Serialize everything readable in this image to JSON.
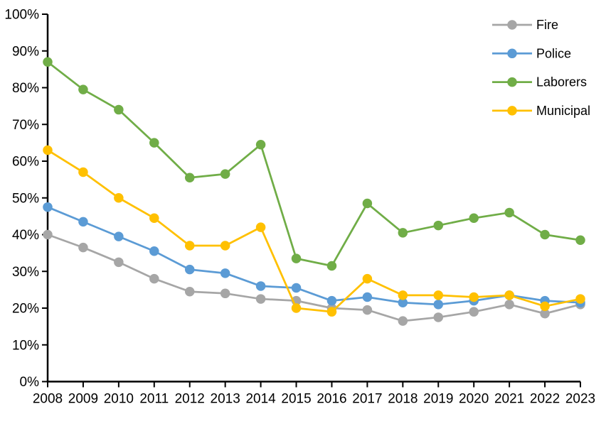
{
  "chart_data": {
    "type": "line",
    "title": "",
    "xlabel": "",
    "ylabel": "",
    "grid": false,
    "background": "#FFFFFF",
    "axis_color": "#000000",
    "categories": [
      "2008",
      "2009",
      "2010",
      "2011",
      "2012",
      "2013",
      "2014",
      "2015",
      "2016",
      "2017",
      "2018",
      "2019",
      "2020",
      "2021",
      "2022",
      "2023"
    ],
    "y_axis": {
      "min": 0,
      "max": 100,
      "step": 10,
      "tick_labels": [
        "0%",
        "10%",
        "20%",
        "30%",
        "40%",
        "50%",
        "60%",
        "70%",
        "80%",
        "90%",
        "100%"
      ]
    },
    "series": [
      {
        "name": "Fire",
        "color": "#A6A6A6",
        "values": [
          40,
          36.5,
          32.5,
          28,
          24.5,
          24,
          22.5,
          22,
          20,
          19.5,
          16.5,
          17.5,
          19,
          21,
          18.5,
          21
        ]
      },
      {
        "name": "Police",
        "color": "#5B9BD5",
        "values": [
          47.5,
          43.5,
          39.5,
          35.5,
          30.5,
          29.5,
          26,
          25.5,
          22,
          23,
          21.5,
          21,
          22,
          23.5,
          22,
          21.5
        ]
      },
      {
        "name": "Laborers",
        "color": "#70AD47",
        "values": [
          87,
          79.5,
          74,
          65,
          55.5,
          56.5,
          64.5,
          33.5,
          31.5,
          48.5,
          40.5,
          42.5,
          44.5,
          46,
          40,
          38.5
        ]
      },
      {
        "name": "Municipal",
        "color": "#FFC000",
        "values": [
          63,
          57,
          50,
          44.5,
          37,
          37,
          42,
          20,
          19,
          28,
          23.5,
          23.5,
          23,
          23.5,
          20.5,
          22.5
        ]
      }
    ],
    "legend": {
      "position": "top-right",
      "labels": [
        "Fire",
        "Police",
        "Laborers",
        "Municipal"
      ]
    }
  }
}
